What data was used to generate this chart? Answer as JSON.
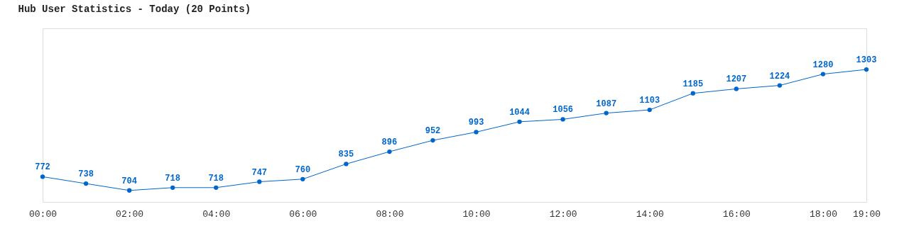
{
  "chart_data": {
    "type": "line",
    "title": "Hub User Statistics - Today (20 Points)",
    "x": [
      0,
      1,
      2,
      3,
      4,
      5,
      6,
      7,
      8,
      9,
      10,
      11,
      12,
      13,
      14,
      15,
      16,
      17,
      18,
      19
    ],
    "series": [
      {
        "color": "#0066cc",
        "values": [
          772,
          738,
          704,
          718,
          718,
          747,
          760,
          835,
          896,
          952,
          993,
          1044,
          1056,
          1087,
          1103,
          1185,
          1207,
          1224,
          1280,
          1303
        ]
      }
    ],
    "xlim": [
      0,
      19
    ],
    "xticks": [
      {
        "value": 0,
        "label": "00:00"
      },
      {
        "value": 2,
        "label": "02:00"
      },
      {
        "value": 4,
        "label": "04:00"
      },
      {
        "value": 6,
        "label": "06:00"
      },
      {
        "value": 8,
        "label": "08:00"
      },
      {
        "value": 10,
        "label": "10:00"
      },
      {
        "value": 12,
        "label": "12:00"
      },
      {
        "value": 14,
        "label": "14:00"
      },
      {
        "value": 16,
        "label": "16:00"
      },
      {
        "value": 18,
        "label": "18:00"
      },
      {
        "value": 19,
        "label": "19:00"
      }
    ],
    "tick_labels": "x",
    "data_labels": true,
    "marker": "circle",
    "line_style": "solid",
    "grid": false
  }
}
